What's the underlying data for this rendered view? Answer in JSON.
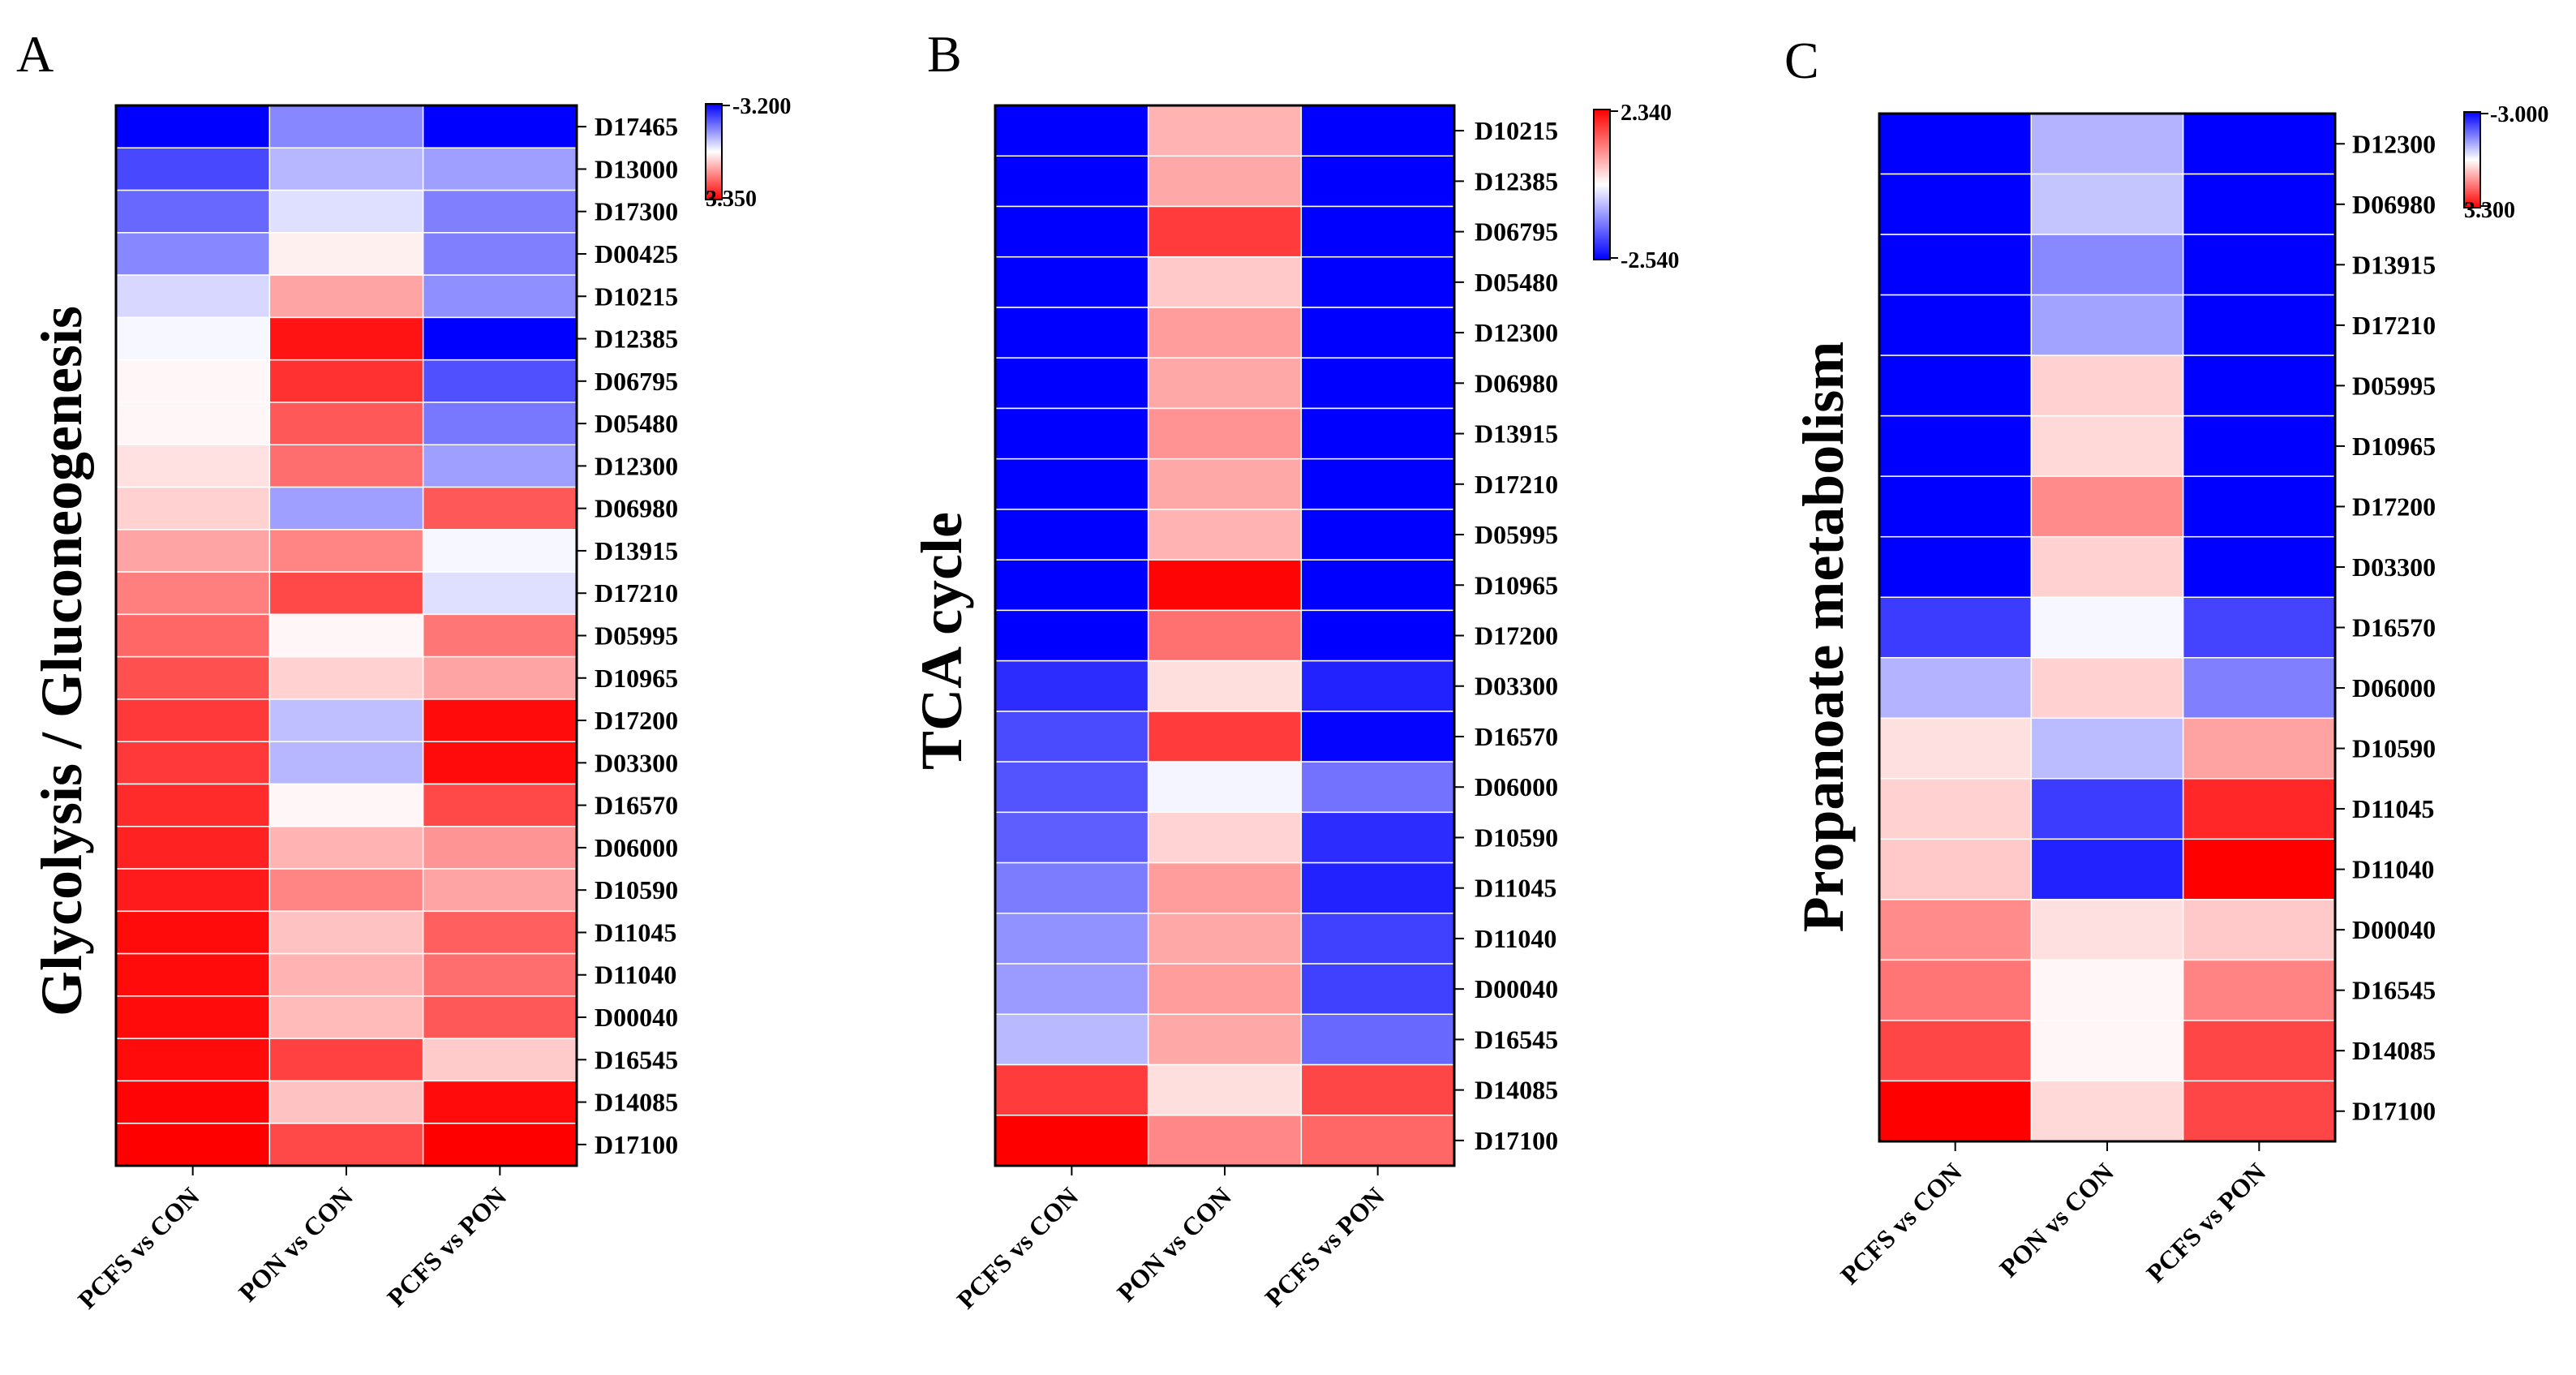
{
  "colors": {
    "low": "#0000ff",
    "mid": "#ffffff",
    "high": "#ff0000",
    "grid_lines": "#ffffff",
    "frame": "#000000"
  },
  "chart_data": [
    {
      "type": "heatmap",
      "panel": "A",
      "ylabel": "Glycolysis / Gluconeogenesis",
      "columns": [
        "PCFS vs CON",
        "PON vs CON",
        "PCFS vs PON"
      ],
      "rows": [
        "D17465",
        "D13000",
        "D17300",
        "D00425",
        "D10215",
        "D12385",
        "D06795",
        "D05480",
        "D12300",
        "D06980",
        "D13915",
        "D17210",
        "D05995",
        "D10965",
        "D17200",
        "D03300",
        "D16570",
        "D06000",
        "D10590",
        "D11045",
        "D11040",
        "D00040",
        "D16545",
        "D14085",
        "D17100"
      ],
      "colorbar": {
        "top_label": "-3.200",
        "bottom_label": "3.350",
        "top_color": "#0000ff",
        "bottom_color": "#ff0000"
      },
      "vmin": -3.2,
      "vmax": 3.35,
      "values": [
        [
          -3.2,
          -1.5,
          -3.2
        ],
        [
          -2.3,
          -0.9,
          -1.2
        ],
        [
          -1.9,
          -0.4,
          -1.6
        ],
        [
          -1.5,
          0.2,
          -1.6
        ],
        [
          -0.5,
          1.2,
          -1.4
        ],
        [
          -0.1,
          3.1,
          -3.2
        ],
        [
          0.1,
          2.7,
          -2.2
        ],
        [
          0.1,
          2.2,
          -1.7
        ],
        [
          0.4,
          1.9,
          -1.2
        ],
        [
          0.6,
          -1.2,
          2.2
        ],
        [
          1.2,
          1.6,
          -0.1
        ],
        [
          1.7,
          2.4,
          -0.4
        ],
        [
          2.0,
          0.1,
          1.8
        ],
        [
          2.3,
          0.6,
          1.2
        ],
        [
          2.6,
          -0.8,
          3.2
        ],
        [
          2.6,
          -0.9,
          3.2
        ],
        [
          2.8,
          0.1,
          2.4
        ],
        [
          2.9,
          1.0,
          1.4
        ],
        [
          3.0,
          1.6,
          1.2
        ],
        [
          3.2,
          0.8,
          2.1
        ],
        [
          3.2,
          1.0,
          1.9
        ],
        [
          3.2,
          0.9,
          2.2
        ],
        [
          3.2,
          2.5,
          0.7
        ],
        [
          3.3,
          0.8,
          3.2
        ],
        [
          3.35,
          2.4,
          3.35
        ]
      ]
    },
    {
      "type": "heatmap",
      "panel": "B",
      "ylabel": "TCA cycle",
      "columns": [
        "PCFS vs CON",
        "PON vs CON",
        "PCFS vs PON"
      ],
      "rows": [
        "D10215",
        "D12385",
        "D06795",
        "D05480",
        "D12300",
        "D06980",
        "D13915",
        "D17210",
        "D05995",
        "D10965",
        "D17200",
        "D03300",
        "D16570",
        "D06000",
        "D10590",
        "D11045",
        "D11040",
        "D00040",
        "D16545",
        "D14085",
        "D17100"
      ],
      "colorbar": {
        "top_label": "2.340",
        "bottom_label": "-2.540",
        "top_color": "#ff0000",
        "bottom_color": "#0000ff"
      },
      "vmin": -2.54,
      "vmax": 2.34,
      "values": [
        [
          -2.54,
          0.7,
          -2.54
        ],
        [
          -2.54,
          0.8,
          -2.54
        ],
        [
          -2.54,
          1.8,
          -2.54
        ],
        [
          -2.54,
          0.5,
          -2.54
        ],
        [
          -2.54,
          0.9,
          -2.54
        ],
        [
          -2.54,
          0.8,
          -2.54
        ],
        [
          -2.54,
          1.0,
          -2.54
        ],
        [
          -2.54,
          0.8,
          -2.54
        ],
        [
          -2.54,
          0.7,
          -2.54
        ],
        [
          -2.54,
          2.3,
          -2.54
        ],
        [
          -2.54,
          1.3,
          -2.54
        ],
        [
          -2.1,
          0.3,
          -2.2
        ],
        [
          -1.8,
          1.8,
          -2.5
        ],
        [
          -1.7,
          -0.1,
          -1.4
        ],
        [
          -1.6,
          0.4,
          -2.1
        ],
        [
          -1.3,
          0.9,
          -2.2
        ],
        [
          -1.1,
          0.8,
          -1.9
        ],
        [
          -1.0,
          0.9,
          -1.9
        ],
        [
          -0.7,
          0.8,
          -1.5
        ],
        [
          1.8,
          0.3,
          1.7
        ],
        [
          2.34,
          1.1,
          1.4
        ]
      ]
    },
    {
      "type": "heatmap",
      "panel": "C",
      "ylabel": "Propanoate metabolism",
      "columns": [
        "PCFS vs CON",
        "PON vs CON",
        "PCFS vs PON"
      ],
      "rows": [
        "D12300",
        "D06980",
        "D13915",
        "D17210",
        "D05995",
        "D10965",
        "D17200",
        "D03300",
        "D16570",
        "D06000",
        "D10590",
        "D11045",
        "D11040",
        "D00040",
        "D16545",
        "D14085",
        "D17100"
      ],
      "colorbar": {
        "top_label": "-3.000",
        "bottom_label": "3.300",
        "top_color": "#0000ff",
        "bottom_color": "#ff0000"
      },
      "vmin": -3.0,
      "vmax": 3.3,
      "values": [
        [
          -3.0,
          -0.9,
          -3.0
        ],
        [
          -3.0,
          -0.7,
          -3.0
        ],
        [
          -3.0,
          -1.4,
          -3.0
        ],
        [
          -3.0,
          -1.1,
          -3.0
        ],
        [
          -3.0,
          0.6,
          -3.0
        ],
        [
          -3.0,
          0.5,
          -3.0
        ],
        [
          -3.0,
          1.5,
          -3.0
        ],
        [
          -3.0,
          0.6,
          -3.0
        ],
        [
          -2.3,
          -0.1,
          -2.2
        ],
        [
          -0.9,
          0.6,
          -1.5
        ],
        [
          0.4,
          -0.8,
          1.2
        ],
        [
          0.6,
          -2.3,
          2.8
        ],
        [
          0.7,
          -2.6,
          3.3
        ],
        [
          1.5,
          0.4,
          0.7
        ],
        [
          1.8,
          0.1,
          1.6
        ],
        [
          2.4,
          0.1,
          2.4
        ],
        [
          3.3,
          0.5,
          2.4
        ]
      ]
    }
  ]
}
